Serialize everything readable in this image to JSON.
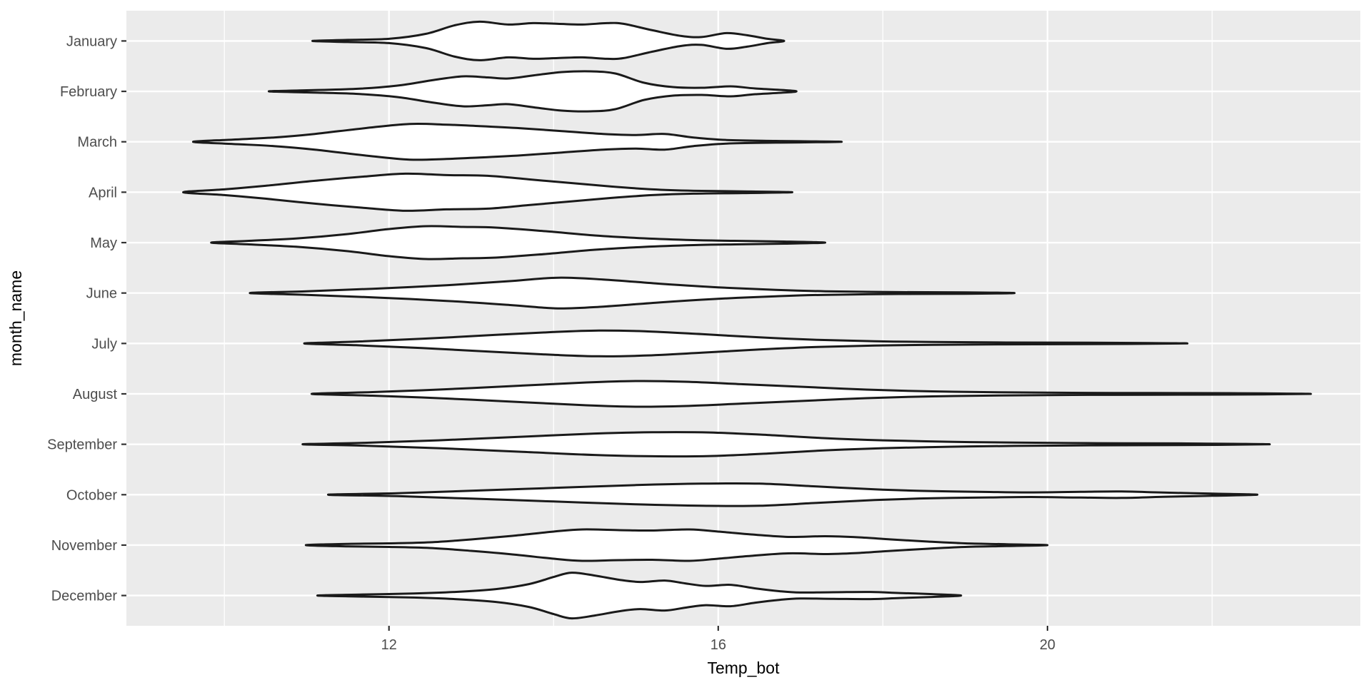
{
  "colors": {
    "panel_bg": "#EBEBEB",
    "grid": "#FFFFFF",
    "violin_outline": "#1A1A1A",
    "violin_fill": "#FFFFFF",
    "tick_mark": "#333333",
    "tick_label": "#4D4D4D",
    "axis_title": "#000000",
    "page_bg": "#FFFFFF"
  },
  "chart_data": {
    "type": "violin",
    "orientation": "horizontal",
    "title": "",
    "xlabel": "Temp_bot",
    "ylabel": "month_name",
    "x_ticks": [
      12,
      16,
      20
    ],
    "x_minor_ticks": [
      10,
      14,
      18,
      22
    ],
    "x_axis_displayed_range": [
      8.81,
      23.8
    ],
    "grid": "on",
    "legend": "none",
    "categories": [
      "January",
      "February",
      "March",
      "April",
      "May",
      "June",
      "July",
      "August",
      "September",
      "October",
      "November",
      "December"
    ],
    "series": [
      {
        "name": "January",
        "min": 11.07,
        "max": 16.8,
        "profile": [
          [
            11.07,
            0
          ],
          [
            11.5,
            1.5
          ],
          [
            12.0,
            3
          ],
          [
            12.45,
            10
          ],
          [
            12.8,
            22
          ],
          [
            13.1,
            27
          ],
          [
            13.45,
            23
          ],
          [
            13.75,
            25
          ],
          [
            14.05,
            24
          ],
          [
            14.35,
            23
          ],
          [
            14.65,
            25
          ],
          [
            14.85,
            24
          ],
          [
            15.2,
            15
          ],
          [
            15.55,
            7
          ],
          [
            15.8,
            5.5
          ],
          [
            16.1,
            11
          ],
          [
            16.35,
            8
          ],
          [
            16.6,
            3
          ],
          [
            16.8,
            0
          ]
        ]
      },
      {
        "name": "February",
        "min": 10.54,
        "max": 16.95,
        "profile": [
          [
            10.54,
            0
          ],
          [
            11.0,
            1.5
          ],
          [
            11.6,
            3.5
          ],
          [
            12.1,
            8
          ],
          [
            12.55,
            16
          ],
          [
            12.9,
            21
          ],
          [
            13.2,
            19.5
          ],
          [
            13.45,
            18
          ],
          [
            13.8,
            23
          ],
          [
            14.1,
            27
          ],
          [
            14.45,
            28
          ],
          [
            14.75,
            25
          ],
          [
            15.1,
            12
          ],
          [
            15.45,
            6
          ],
          [
            15.8,
            5
          ],
          [
            16.15,
            7
          ],
          [
            16.45,
            4
          ],
          [
            16.95,
            0
          ]
        ]
      },
      {
        "name": "March",
        "min": 9.62,
        "max": 17.5,
        "profile": [
          [
            9.62,
            0
          ],
          [
            10.1,
            3
          ],
          [
            10.6,
            6
          ],
          [
            11.1,
            11
          ],
          [
            11.7,
            19
          ],
          [
            12.25,
            25
          ],
          [
            12.7,
            24
          ],
          [
            13.1,
            22
          ],
          [
            13.6,
            19
          ],
          [
            14.1,
            15
          ],
          [
            14.6,
            11
          ],
          [
            15.0,
            9.5
          ],
          [
            15.35,
            11
          ],
          [
            15.7,
            6
          ],
          [
            16.1,
            2.5
          ],
          [
            16.7,
            1.2
          ],
          [
            17.5,
            0
          ]
        ]
      },
      {
        "name": "April",
        "min": 9.5,
        "max": 16.9,
        "profile": [
          [
            9.5,
            0
          ],
          [
            10.0,
            4
          ],
          [
            10.5,
            9
          ],
          [
            11.1,
            16
          ],
          [
            11.7,
            22
          ],
          [
            12.2,
            26
          ],
          [
            12.7,
            24
          ],
          [
            13.2,
            23
          ],
          [
            13.7,
            18
          ],
          [
            14.2,
            13
          ],
          [
            14.7,
            8
          ],
          [
            15.2,
            4
          ],
          [
            15.7,
            2
          ],
          [
            16.3,
            1.2
          ],
          [
            16.9,
            0
          ]
        ]
      },
      {
        "name": "May",
        "min": 9.84,
        "max": 17.3,
        "profile": [
          [
            9.84,
            0
          ],
          [
            10.3,
            2.5
          ],
          [
            10.9,
            6
          ],
          [
            11.5,
            12
          ],
          [
            12.0,
            19
          ],
          [
            12.45,
            23
          ],
          [
            12.9,
            22
          ],
          [
            13.3,
            21
          ],
          [
            13.9,
            16
          ],
          [
            14.5,
            10
          ],
          [
            15.1,
            6
          ],
          [
            15.7,
            3.5
          ],
          [
            16.2,
            2.5
          ],
          [
            16.8,
            1.5
          ],
          [
            17.3,
            0
          ]
        ]
      },
      {
        "name": "June",
        "min": 10.31,
        "max": 19.6,
        "profile": [
          [
            10.31,
            0
          ],
          [
            11.0,
            2.5
          ],
          [
            11.8,
            6
          ],
          [
            12.7,
            11
          ],
          [
            13.5,
            17
          ],
          [
            14.05,
            21.5
          ],
          [
            14.6,
            19
          ],
          [
            15.3,
            13
          ],
          [
            16.0,
            8
          ],
          [
            16.7,
            4.5
          ],
          [
            17.3,
            2.5
          ],
          [
            18.2,
            1.3
          ],
          [
            19.0,
            1.0
          ],
          [
            19.6,
            0
          ]
        ]
      },
      {
        "name": "July",
        "min": 10.97,
        "max": 21.7,
        "profile": [
          [
            10.97,
            0
          ],
          [
            11.6,
            2.5
          ],
          [
            12.4,
            6.5
          ],
          [
            13.3,
            12
          ],
          [
            14.0,
            16
          ],
          [
            14.55,
            18
          ],
          [
            15.1,
            17
          ],
          [
            15.8,
            13
          ],
          [
            16.5,
            8.5
          ],
          [
            17.2,
            5
          ],
          [
            17.9,
            3
          ],
          [
            18.6,
            2
          ],
          [
            19.5,
            1.3
          ],
          [
            20.5,
            1.0
          ],
          [
            21.7,
            0
          ]
        ]
      },
      {
        "name": "August",
        "min": 11.06,
        "max": 23.2,
        "profile": [
          [
            11.06,
            0
          ],
          [
            11.8,
            2.5
          ],
          [
            12.7,
            6.5
          ],
          [
            13.6,
            11.5
          ],
          [
            14.4,
            16
          ],
          [
            15.0,
            18
          ],
          [
            15.6,
            17
          ],
          [
            16.3,
            13.5
          ],
          [
            17.0,
            10
          ],
          [
            17.8,
            6
          ],
          [
            18.6,
            3.5
          ],
          [
            19.4,
            2.2
          ],
          [
            20.3,
            1.5
          ],
          [
            21.3,
            1.2
          ],
          [
            22.2,
            1.0
          ],
          [
            23.2,
            0
          ]
        ]
      },
      {
        "name": "September",
        "min": 10.95,
        "max": 22.7,
        "profile": [
          [
            10.95,
            0
          ],
          [
            11.7,
            2
          ],
          [
            12.6,
            5.5
          ],
          [
            13.6,
            10.5
          ],
          [
            14.5,
            15
          ],
          [
            15.2,
            16.8
          ],
          [
            15.9,
            16.5
          ],
          [
            16.6,
            13
          ],
          [
            17.3,
            8.5
          ],
          [
            18.0,
            5.5
          ],
          [
            18.8,
            3.5
          ],
          [
            19.6,
            2.3
          ],
          [
            20.6,
            1.5
          ],
          [
            21.6,
            1.2
          ],
          [
            22.7,
            0
          ]
        ]
      },
      {
        "name": "October",
        "min": 11.26,
        "max": 22.55,
        "profile": [
          [
            11.26,
            0
          ],
          [
            12.1,
            2
          ],
          [
            13.0,
            5.5
          ],
          [
            14.0,
            9.5
          ],
          [
            15.0,
            13.5
          ],
          [
            15.8,
            15.5
          ],
          [
            16.5,
            15.5
          ],
          [
            17.2,
            11.5
          ],
          [
            17.9,
            7.5
          ],
          [
            18.6,
            5
          ],
          [
            19.3,
            3.8
          ],
          [
            19.8,
            3.2
          ],
          [
            20.4,
            4
          ],
          [
            20.9,
            4.5
          ],
          [
            21.4,
            3
          ],
          [
            22.0,
            1.5
          ],
          [
            22.55,
            0
          ]
        ]
      },
      {
        "name": "November",
        "min": 10.99,
        "max": 20.0,
        "profile": [
          [
            10.99,
            0
          ],
          [
            11.5,
            1.8
          ],
          [
            12.0,
            2.5
          ],
          [
            12.5,
            4
          ],
          [
            13.0,
            8
          ],
          [
            13.5,
            13
          ],
          [
            14.0,
            19
          ],
          [
            14.35,
            22
          ],
          [
            14.8,
            21
          ],
          [
            15.2,
            20.5
          ],
          [
            15.65,
            22
          ],
          [
            16.0,
            19
          ],
          [
            16.4,
            15
          ],
          [
            16.85,
            11.5
          ],
          [
            17.3,
            12.5
          ],
          [
            17.7,
            11
          ],
          [
            18.1,
            8
          ],
          [
            18.55,
            5
          ],
          [
            19.0,
            2.5
          ],
          [
            19.5,
            1.3
          ],
          [
            20.0,
            0
          ]
        ]
      },
      {
        "name": "December",
        "min": 11.13,
        "max": 18.95,
        "profile": [
          [
            11.13,
            0
          ],
          [
            11.7,
            1.5
          ],
          [
            12.3,
            2.8
          ],
          [
            12.8,
            5
          ],
          [
            13.3,
            9
          ],
          [
            13.7,
            16
          ],
          [
            14.0,
            26
          ],
          [
            14.22,
            32
          ],
          [
            14.5,
            28
          ],
          [
            14.8,
            22
          ],
          [
            15.05,
            19
          ],
          [
            15.35,
            21
          ],
          [
            15.6,
            17
          ],
          [
            15.85,
            13.5
          ],
          [
            16.15,
            15
          ],
          [
            16.45,
            10
          ],
          [
            16.75,
            6
          ],
          [
            17.0,
            4.2
          ],
          [
            17.4,
            4.6
          ],
          [
            17.85,
            5
          ],
          [
            18.2,
            3.5
          ],
          [
            18.6,
            2
          ],
          [
            18.95,
            0
          ]
        ]
      }
    ]
  }
}
